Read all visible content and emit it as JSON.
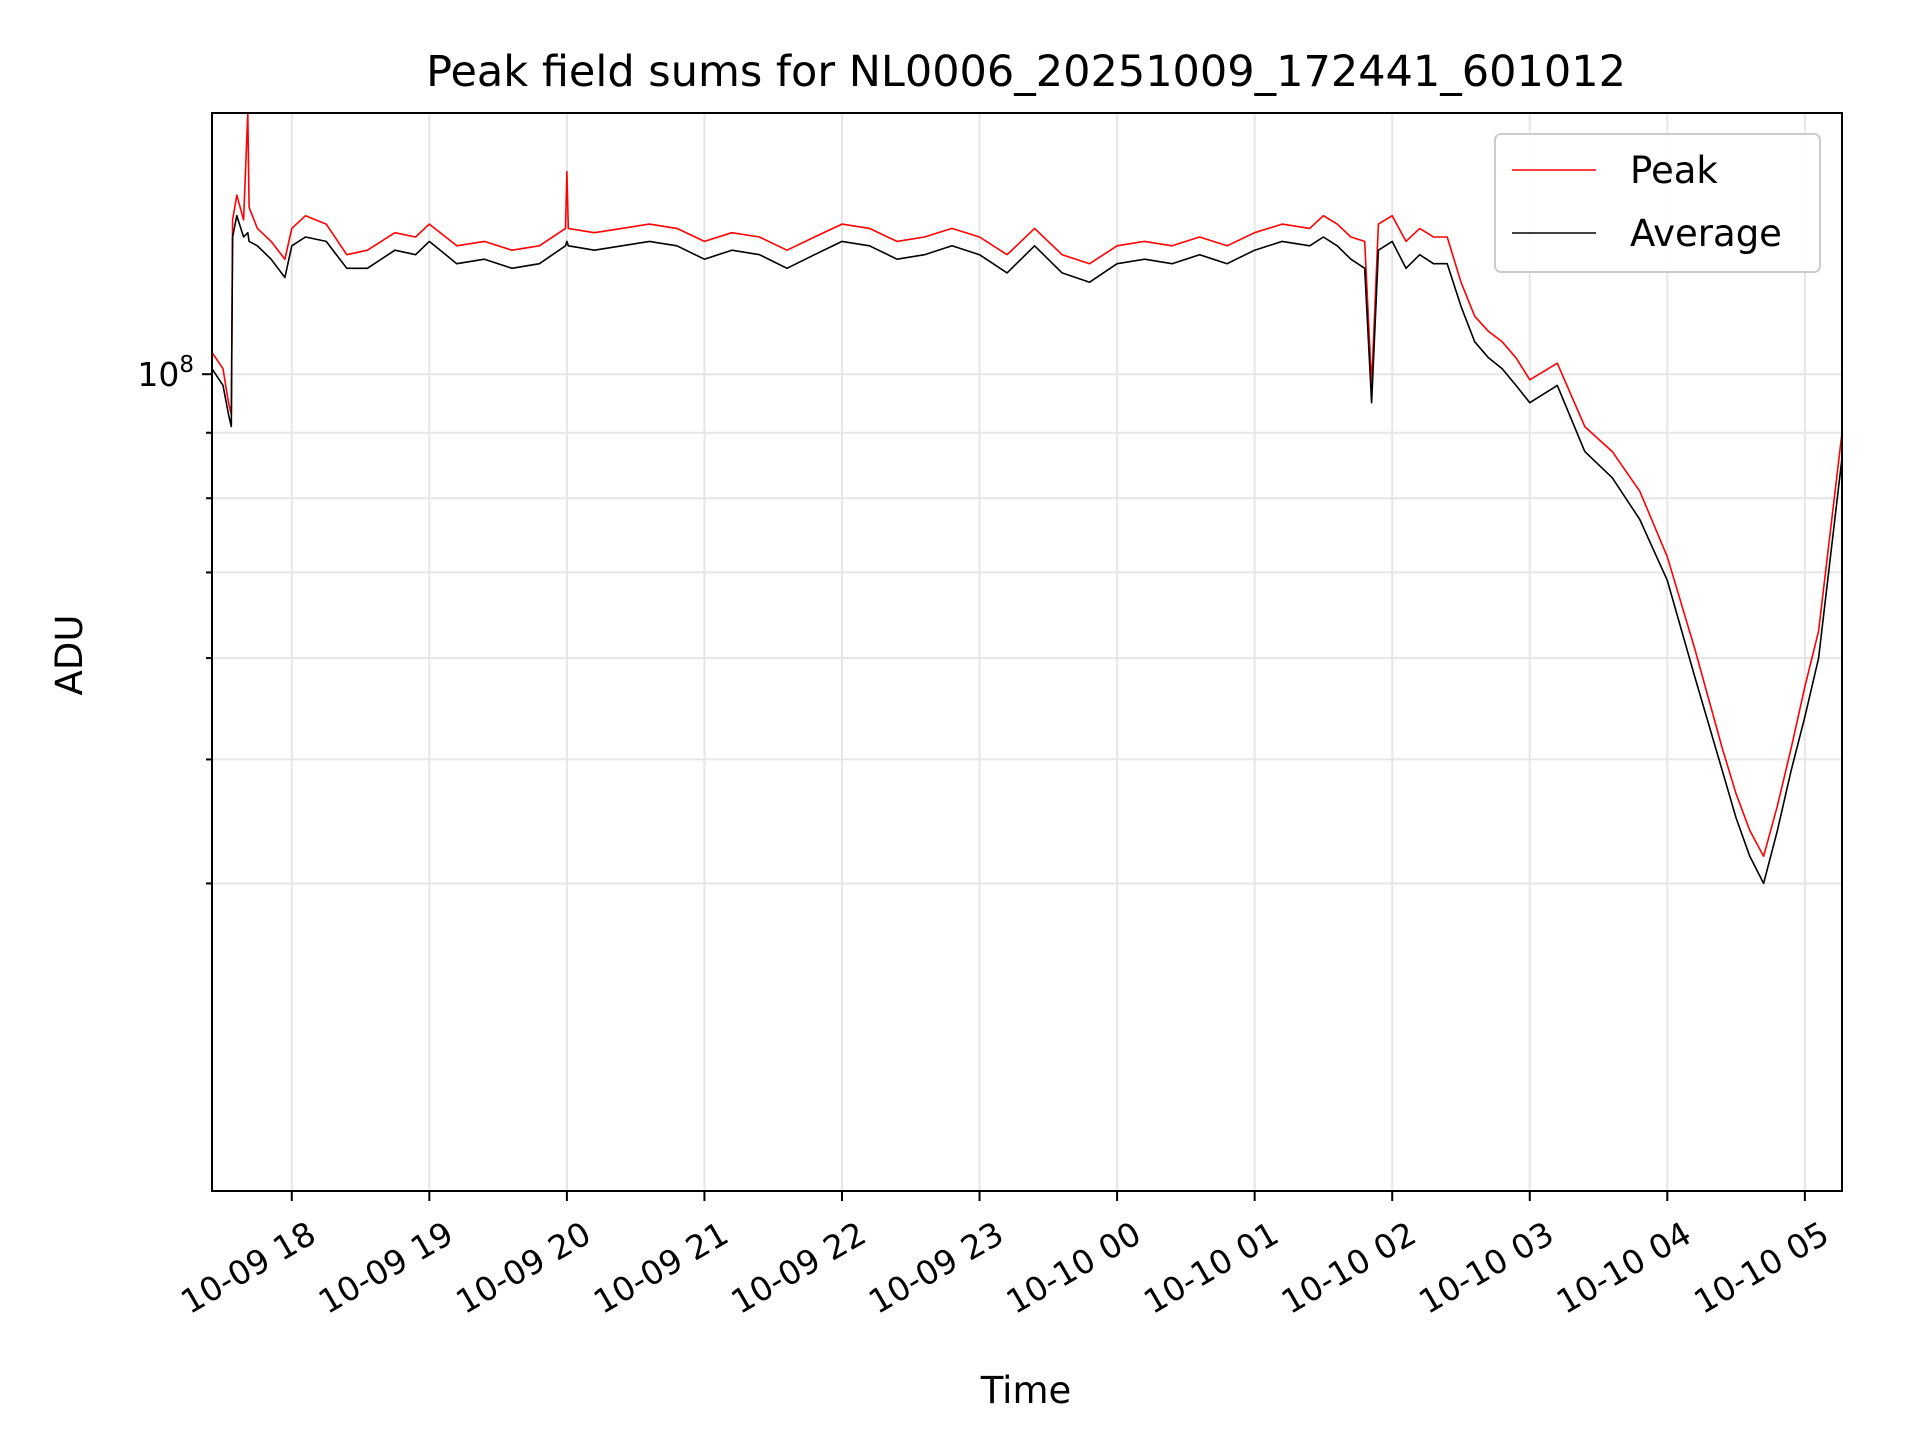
{
  "chart_data": {
    "type": "line",
    "title": "Peak field sums for NL0006_20251009_172441_601012",
    "xlabel": "Time",
    "ylabel": "ADU",
    "yscale": "log",
    "ylim": [
      23000000,
      160000000
    ],
    "xlim_hours": [
      -0.58,
      11.27
    ],
    "x_unit": "hours after 2025-10-09 18:00",
    "grid": true,
    "legend_position": "top-right",
    "x_ticks": [
      {
        "value": 0,
        "label": "10-09 18"
      },
      {
        "value": 1,
        "label": "10-09 19"
      },
      {
        "value": 2,
        "label": "10-09 20"
      },
      {
        "value": 3,
        "label": "10-09 21"
      },
      {
        "value": 4,
        "label": "10-09 22"
      },
      {
        "value": 5,
        "label": "10-09 23"
      },
      {
        "value": 6,
        "label": "10-10 00"
      },
      {
        "value": 7,
        "label": "10-10 01"
      },
      {
        "value": 8,
        "label": "10-10 02"
      },
      {
        "value": 9,
        "label": "10-10 03"
      },
      {
        "value": 10,
        "label": "10-10 04"
      },
      {
        "value": 11,
        "label": "10-10 05"
      }
    ],
    "y_major_ticks": [
      {
        "value": 100000000,
        "base": "10",
        "exp": "8"
      }
    ],
    "y_minor_ticks": [
      40000000,
      50000000,
      60000000,
      70000000,
      80000000,
      90000000
    ],
    "series": [
      {
        "name": "Peak",
        "color": "#ff0000",
        "points": [
          [
            -0.58,
            104000000
          ],
          [
            -0.5,
            101000000
          ],
          [
            -0.46,
            95000000
          ],
          [
            -0.44,
            93000000
          ],
          [
            -0.43,
            132000000
          ],
          [
            -0.4,
            138000000
          ],
          [
            -0.35,
            132000000
          ],
          [
            -0.32,
            160000000
          ],
          [
            -0.31,
            135000000
          ],
          [
            -0.25,
            130000000
          ],
          [
            -0.15,
            127000000
          ],
          [
            -0.05,
            123000000
          ],
          [
            0.0,
            130000000
          ],
          [
            0.1,
            133000000
          ],
          [
            0.25,
            131000000
          ],
          [
            0.4,
            124000000
          ],
          [
            0.55,
            125000000
          ],
          [
            0.75,
            129000000
          ],
          [
            0.9,
            128000000
          ],
          [
            1.0,
            131000000
          ],
          [
            1.2,
            126000000
          ],
          [
            1.4,
            127000000
          ],
          [
            1.6,
            125000000
          ],
          [
            1.8,
            126000000
          ],
          [
            1.99,
            130000000
          ],
          [
            2.0,
            144000000
          ],
          [
            2.01,
            130000000
          ],
          [
            2.2,
            129000000
          ],
          [
            2.4,
            130000000
          ],
          [
            2.6,
            131000000
          ],
          [
            2.8,
            130000000
          ],
          [
            3.0,
            127000000
          ],
          [
            3.2,
            129000000
          ],
          [
            3.4,
            128000000
          ],
          [
            3.6,
            125000000
          ],
          [
            3.8,
            128000000
          ],
          [
            4.0,
            131000000
          ],
          [
            4.2,
            130000000
          ],
          [
            4.4,
            127000000
          ],
          [
            4.6,
            128000000
          ],
          [
            4.8,
            130000000
          ],
          [
            5.0,
            128000000
          ],
          [
            5.2,
            124000000
          ],
          [
            5.4,
            130000000
          ],
          [
            5.6,
            124000000
          ],
          [
            5.8,
            122000000
          ],
          [
            6.0,
            126000000
          ],
          [
            6.2,
            127000000
          ],
          [
            6.4,
            126000000
          ],
          [
            6.6,
            128000000
          ],
          [
            6.8,
            126000000
          ],
          [
            7.0,
            129000000
          ],
          [
            7.2,
            131000000
          ],
          [
            7.4,
            130000000
          ],
          [
            7.5,
            133000000
          ],
          [
            7.6,
            131000000
          ],
          [
            7.7,
            128000000
          ],
          [
            7.8,
            127000000
          ],
          [
            7.85,
            98000000
          ],
          [
            7.9,
            131000000
          ],
          [
            8.0,
            133000000
          ],
          [
            8.1,
            127000000
          ],
          [
            8.2,
            130000000
          ],
          [
            8.3,
            128000000
          ],
          [
            8.4,
            128000000
          ],
          [
            8.5,
            118000000
          ],
          [
            8.6,
            111000000
          ],
          [
            8.7,
            108000000
          ],
          [
            8.8,
            106000000
          ],
          [
            8.9,
            103000000
          ],
          [
            9.0,
            99000000
          ],
          [
            9.2,
            102000000
          ],
          [
            9.4,
            91000000
          ],
          [
            9.6,
            87000000
          ],
          [
            9.8,
            81000000
          ],
          [
            10.0,
            72000000
          ],
          [
            10.2,
            61000000
          ],
          [
            10.4,
            51000000
          ],
          [
            10.5,
            47000000
          ],
          [
            10.6,
            44000000
          ],
          [
            10.7,
            42000000
          ],
          [
            10.8,
            46000000
          ],
          [
            10.9,
            51000000
          ],
          [
            11.0,
            57000000
          ],
          [
            11.1,
            63000000
          ],
          [
            11.27,
            90000000
          ]
        ]
      },
      {
        "name": "Average",
        "color": "#000000",
        "points": [
          [
            -0.58,
            101000000
          ],
          [
            -0.5,
            98000000
          ],
          [
            -0.46,
            93000000
          ],
          [
            -0.44,
            91000000
          ],
          [
            -0.43,
            128000000
          ],
          [
            -0.4,
            133000000
          ],
          [
            -0.35,
            128000000
          ],
          [
            -0.32,
            129000000
          ],
          [
            -0.31,
            127000000
          ],
          [
            -0.25,
            126000000
          ],
          [
            -0.15,
            123000000
          ],
          [
            -0.05,
            119000000
          ],
          [
            0.0,
            126000000
          ],
          [
            0.1,
            128000000
          ],
          [
            0.25,
            127000000
          ],
          [
            0.4,
            121000000
          ],
          [
            0.55,
            121000000
          ],
          [
            0.75,
            125000000
          ],
          [
            0.9,
            124000000
          ],
          [
            1.0,
            127000000
          ],
          [
            1.2,
            122000000
          ],
          [
            1.4,
            123000000
          ],
          [
            1.6,
            121000000
          ],
          [
            1.8,
            122000000
          ],
          [
            1.99,
            126000000
          ],
          [
            2.0,
            127000000
          ],
          [
            2.01,
            126000000
          ],
          [
            2.2,
            125000000
          ],
          [
            2.4,
            126000000
          ],
          [
            2.6,
            127000000
          ],
          [
            2.8,
            126000000
          ],
          [
            3.0,
            123000000
          ],
          [
            3.2,
            125000000
          ],
          [
            3.4,
            124000000
          ],
          [
            3.6,
            121000000
          ],
          [
            3.8,
            124000000
          ],
          [
            4.0,
            127000000
          ],
          [
            4.2,
            126000000
          ],
          [
            4.4,
            123000000
          ],
          [
            4.6,
            124000000
          ],
          [
            4.8,
            126000000
          ],
          [
            5.0,
            124000000
          ],
          [
            5.2,
            120000000
          ],
          [
            5.4,
            126000000
          ],
          [
            5.6,
            120000000
          ],
          [
            5.8,
            118000000
          ],
          [
            6.0,
            122000000
          ],
          [
            6.2,
            123000000
          ],
          [
            6.4,
            122000000
          ],
          [
            6.6,
            124000000
          ],
          [
            6.8,
            122000000
          ],
          [
            7.0,
            125000000
          ],
          [
            7.2,
            127000000
          ],
          [
            7.4,
            126000000
          ],
          [
            7.5,
            128000000
          ],
          [
            7.6,
            126000000
          ],
          [
            7.7,
            123000000
          ],
          [
            7.8,
            121000000
          ],
          [
            7.85,
            95000000
          ],
          [
            7.9,
            125000000
          ],
          [
            8.0,
            127000000
          ],
          [
            8.1,
            121000000
          ],
          [
            8.2,
            124000000
          ],
          [
            8.3,
            122000000
          ],
          [
            8.4,
            122000000
          ],
          [
            8.5,
            113000000
          ],
          [
            8.6,
            106000000
          ],
          [
            8.7,
            103000000
          ],
          [
            8.8,
            101000000
          ],
          [
            8.9,
            98000000
          ],
          [
            9.0,
            95000000
          ],
          [
            9.2,
            98000000
          ],
          [
            9.4,
            87000000
          ],
          [
            9.6,
            83000000
          ],
          [
            9.8,
            77000000
          ],
          [
            10.0,
            69000000
          ],
          [
            10.2,
            58000000
          ],
          [
            10.4,
            49000000
          ],
          [
            10.5,
            45000000
          ],
          [
            10.6,
            42000000
          ],
          [
            10.7,
            40000000
          ],
          [
            10.8,
            44000000
          ],
          [
            10.9,
            49000000
          ],
          [
            11.0,
            54000000
          ],
          [
            11.1,
            60000000
          ],
          [
            11.27,
            86000000
          ]
        ]
      }
    ]
  }
}
